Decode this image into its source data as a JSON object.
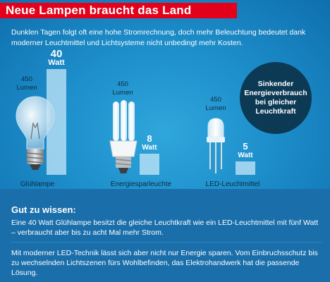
{
  "header": {
    "title": "Neue Lampen braucht das Land",
    "intro": "Dunklen Tagen folgt oft eine hohe Stromrechnung, doch mehr Beleuchtung bedeutet dank moderner Leuchtmittel und Lichtsysteme nicht unbedingt mehr Kosten."
  },
  "chart_data": {
    "type": "bar",
    "categories": [
      "Glühlampe",
      "Energiesparleuchte",
      "LED-Leuchtmittel"
    ],
    "values": [
      40,
      8,
      5
    ],
    "value_labels": [
      {
        "num": "40",
        "unit": "Watt"
      },
      {
        "num": "8",
        "unit": "Watt"
      },
      {
        "num": "5",
        "unit": "Watt"
      }
    ],
    "lumen_labels": [
      {
        "num": "450",
        "unit": "Lumen"
      },
      {
        "num": "450",
        "unit": "Lumen"
      },
      {
        "num": "450",
        "unit": "Lumen"
      }
    ],
    "annotation": [
      "Sinkender",
      "Energieverbrauch",
      "bei gleicher",
      "Leuchtkraft"
    ],
    "ylim": [
      0,
      40
    ],
    "grid": false
  },
  "info": {
    "title": "Gut zu wissen:",
    "text": "Eine 40 Watt Glühlampe besitzt die gleiche Leuchtkraft wie ein LED-Leuchtmittel mit fünf Watt – verbraucht aber bis zu acht Mal mehr Strom.",
    "closing": "Mit moderner LED-Technik lässt sich aber nicht nur Energie sparen. Vom Einbruchsschutz bis zu wechselnden Lichtszenen fürs Wohlbefinden, das Elektrohandwerk hat die passende Lösung."
  },
  "colors": {
    "title_bar": "#e2001a",
    "background": "#1d8fcb",
    "bar": "#bfe4f6",
    "circle": "#0c3a55"
  }
}
